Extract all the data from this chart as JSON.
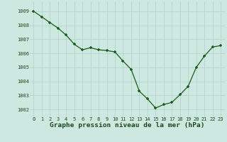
{
  "x": [
    0,
    1,
    2,
    3,
    4,
    5,
    6,
    7,
    8,
    9,
    10,
    11,
    12,
    13,
    14,
    15,
    16,
    17,
    18,
    19,
    20,
    21,
    22,
    23
  ],
  "y": [
    1009.0,
    1008.6,
    1008.2,
    1007.8,
    1007.3,
    1006.65,
    1006.25,
    1006.4,
    1006.25,
    1006.2,
    1006.1,
    1005.45,
    1004.85,
    1003.3,
    1002.75,
    1002.1,
    1002.35,
    1002.5,
    1003.05,
    1003.65,
    1005.0,
    1005.8,
    1006.45,
    1006.55
  ],
  "line_color": "#1a5c1a",
  "marker_color": "#1a5c1a",
  "bg_color": "#cce8e0",
  "grid_color": "#b0d0c8",
  "title": "Graphe pression niveau de la mer (hPa)",
  "ylim_min": 1001.5,
  "ylim_max": 1009.7,
  "yticks": [
    1002,
    1003,
    1004,
    1005,
    1006,
    1007,
    1008,
    1009
  ],
  "xticks": [
    0,
    1,
    2,
    3,
    4,
    5,
    6,
    7,
    8,
    9,
    10,
    11,
    12,
    13,
    14,
    15,
    16,
    17,
    18,
    19,
    20,
    21,
    22,
    23
  ],
  "tick_fontsize": 5.0,
  "title_fontsize": 6.8
}
